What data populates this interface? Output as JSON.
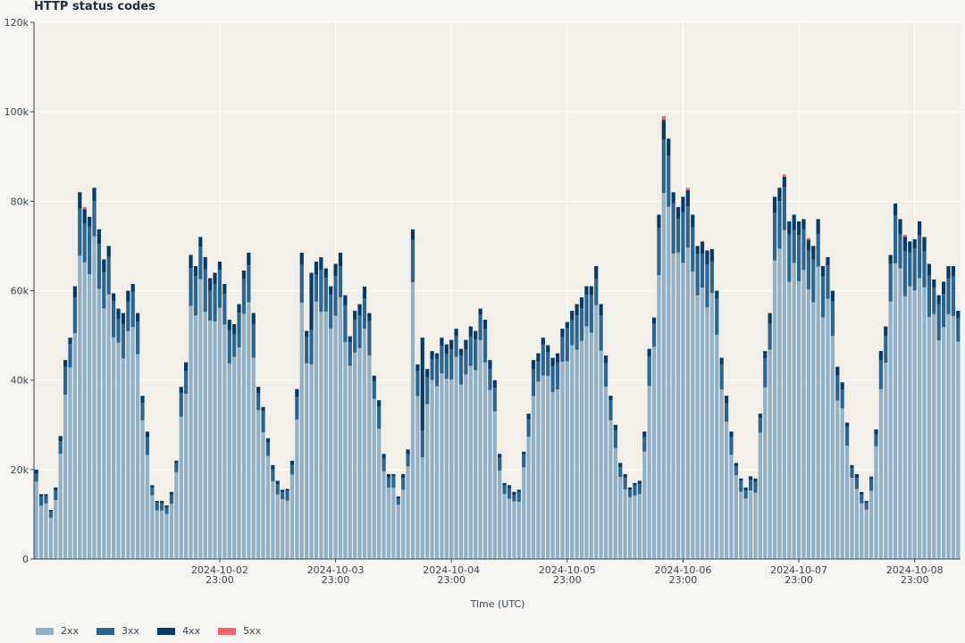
{
  "chart_data": {
    "type": "bar",
    "stacked": true,
    "title": "HTTP status codes",
    "xlabel": "Time (UTC)",
    "ylabel": "",
    "ylim": [
      0,
      120000
    ],
    "y_ticks": [
      0,
      20000,
      40000,
      60000,
      80000,
      100000,
      120000
    ],
    "y_tick_labels": [
      "0",
      "20k",
      "40k",
      "60k",
      "80k",
      "100k",
      "120k"
    ],
    "x_tick_labels": [
      {
        "date": "2024-10-02",
        "time": "23:00"
      },
      {
        "date": "2024-10-03",
        "time": "23:00"
      },
      {
        "date": "2024-10-04",
        "time": "23:00"
      },
      {
        "date": "2024-10-05",
        "time": "23:00"
      },
      {
        "date": "2024-10-06",
        "time": "23:00"
      },
      {
        "date": "2024-10-07",
        "time": "23:00"
      },
      {
        "date": "2024-10-08",
        "time": "23:00"
      }
    ],
    "interval": "1 hour",
    "x_start": "2024-10-01 09:00",
    "grid": true,
    "legend_position": "bottom-left",
    "series": [
      {
        "name": "2xx",
        "color": "#93b1c6"
      },
      {
        "name": "3xx",
        "color": "#2b6592"
      },
      {
        "name": "4xx",
        "color": "#053a68"
      },
      {
        "name": "5xx",
        "color": "#f4646a"
      }
    ],
    "hourly_totals": [
      20000,
      14500,
      14500,
      11000,
      16000,
      27500,
      44500,
      49500,
      61000,
      82000,
      78700,
      76500,
      83000,
      73700,
      67000,
      70000,
      59400,
      56000,
      55000,
      60000,
      61500,
      55000,
      36500,
      28500,
      16500,
      13000,
      13000,
      12000,
      15000,
      22000,
      38500,
      44000,
      68000,
      65500,
      72000,
      67500,
      62800,
      64000,
      66500,
      61500,
      53500,
      52500,
      57000,
      64500,
      68500,
      55000,
      38500,
      34000,
      27000,
      21000,
      17500,
      15500,
      15700,
      22000,
      38000,
      68500,
      51000,
      64000,
      66500,
      67500,
      65000,
      61000,
      66000,
      68500,
      59000,
      49800,
      55500,
      57000,
      60900,
      55000,
      41000,
      35500,
      23500,
      19000,
      19000,
      14000,
      19000,
      24500,
      73700,
      43500,
      49500,
      42500,
      46500,
      46000,
      49500,
      48000,
      49000,
      51500,
      47000,
      49000,
      52000,
      51000,
      56000,
      53500,
      44500,
      40000,
      23500,
      17000,
      16500,
      15000,
      15500,
      24000,
      32500,
      44500,
      46000,
      49500,
      47800,
      45000,
      46000,
      51500,
      53000,
      55500,
      57000,
      58500,
      61000,
      61000,
      65500,
      57000,
      45500,
      36500,
      30000,
      21500,
      19000,
      16000,
      17000,
      17500,
      28500,
      47000,
      54000,
      77000,
      99000,
      94000,
      82000,
      78700,
      81000,
      83000,
      77000,
      70000,
      71000,
      69000,
      69300,
      60000,
      45000,
      36500,
      28500,
      21500,
      18000,
      16000,
      18500,
      18000,
      32500,
      46500,
      55000,
      81000,
      83000,
      86000,
      75500,
      77000,
      75500,
      76000,
      71800,
      70000,
      76000,
      65500,
      67500,
      60000,
      43000,
      39500,
      30500,
      21000,
      19000,
      15000,
      13000,
      18500,
      29000,
      46500,
      52000,
      68000,
      79500,
      76000,
      72500,
      71000,
      71500,
      75500,
      72000,
      66000,
      62500,
      59000,
      62000,
      65500,
      65500,
      55500
    ]
  },
  "legend": {
    "items": [
      {
        "label": "2xx",
        "color": "#93b1c6"
      },
      {
        "label": "3xx",
        "color": "#2b6592"
      },
      {
        "label": "4xx",
        "color": "#053a68"
      },
      {
        "label": "5xx",
        "color": "#f4646a"
      }
    ]
  },
  "colors": {
    "plot_background": "#f2efe9",
    "page_background": "#f7f5f1",
    "grid": "#ffffff"
  }
}
